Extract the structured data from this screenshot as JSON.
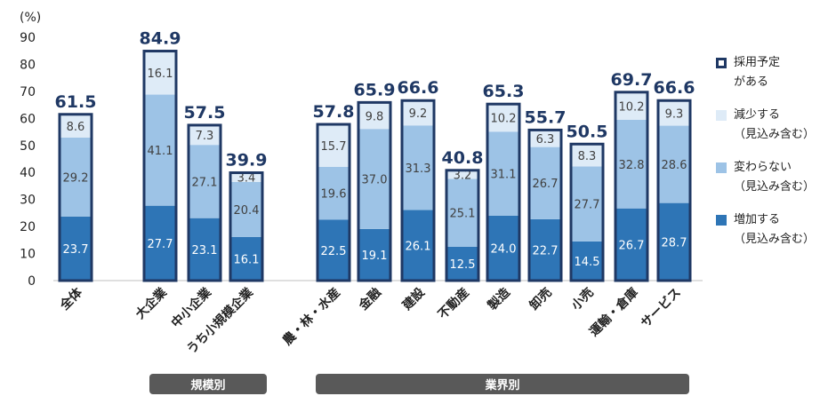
{
  "chart_data": {
    "type": "bar",
    "stacked": true,
    "unit_label": "(%)",
    "ylim": [
      0,
      90
    ],
    "yticks": [
      0,
      10,
      20,
      30,
      40,
      50,
      60,
      70,
      80,
      90
    ],
    "grid": false,
    "legend_position": "right",
    "categories": [
      "全体",
      "大企業",
      "中小企業",
      "うち小規模企業",
      "農・林・水産",
      "金融",
      "建設",
      "不動産",
      "製造",
      "卸売",
      "小売",
      "運輸・倉庫",
      "サービス"
    ],
    "series": [
      {
        "name": "増加する\n（見込み含む）",
        "color": "#2e75b6",
        "values": [
          23.7,
          27.7,
          23.1,
          16.1,
          22.5,
          19.1,
          26.1,
          12.5,
          24.0,
          22.7,
          14.5,
          26.7,
          28.7
        ]
      },
      {
        "name": "変わらない\n（見込み含む）",
        "color": "#9dc3e6",
        "values": [
          29.2,
          41.1,
          27.1,
          20.4,
          19.6,
          37.0,
          31.3,
          25.1,
          31.1,
          26.7,
          27.7,
          32.8,
          28.6
        ]
      },
      {
        "name": "減少する\n（見込み含む）",
        "color": "#deebf7",
        "values": [
          8.6,
          16.1,
          7.3,
          3.4,
          15.7,
          9.8,
          9.2,
          3.2,
          10.2,
          6.3,
          8.3,
          10.2,
          9.3
        ]
      }
    ],
    "totals_series_name": "採用予定\nがある",
    "totals": [
      61.5,
      84.9,
      57.5,
      39.9,
      57.8,
      65.9,
      66.6,
      40.8,
      65.3,
      55.7,
      50.5,
      69.7,
      66.6
    ],
    "group_labels": [
      "規模別",
      "業界別"
    ]
  },
  "colors": {
    "outline": "#1f3864",
    "total_text": "#1f3864",
    "group_bg": "#595959",
    "axis_text": "#222222",
    "value_text_dark": "#404040",
    "value_text_light": "#ffffff"
  }
}
